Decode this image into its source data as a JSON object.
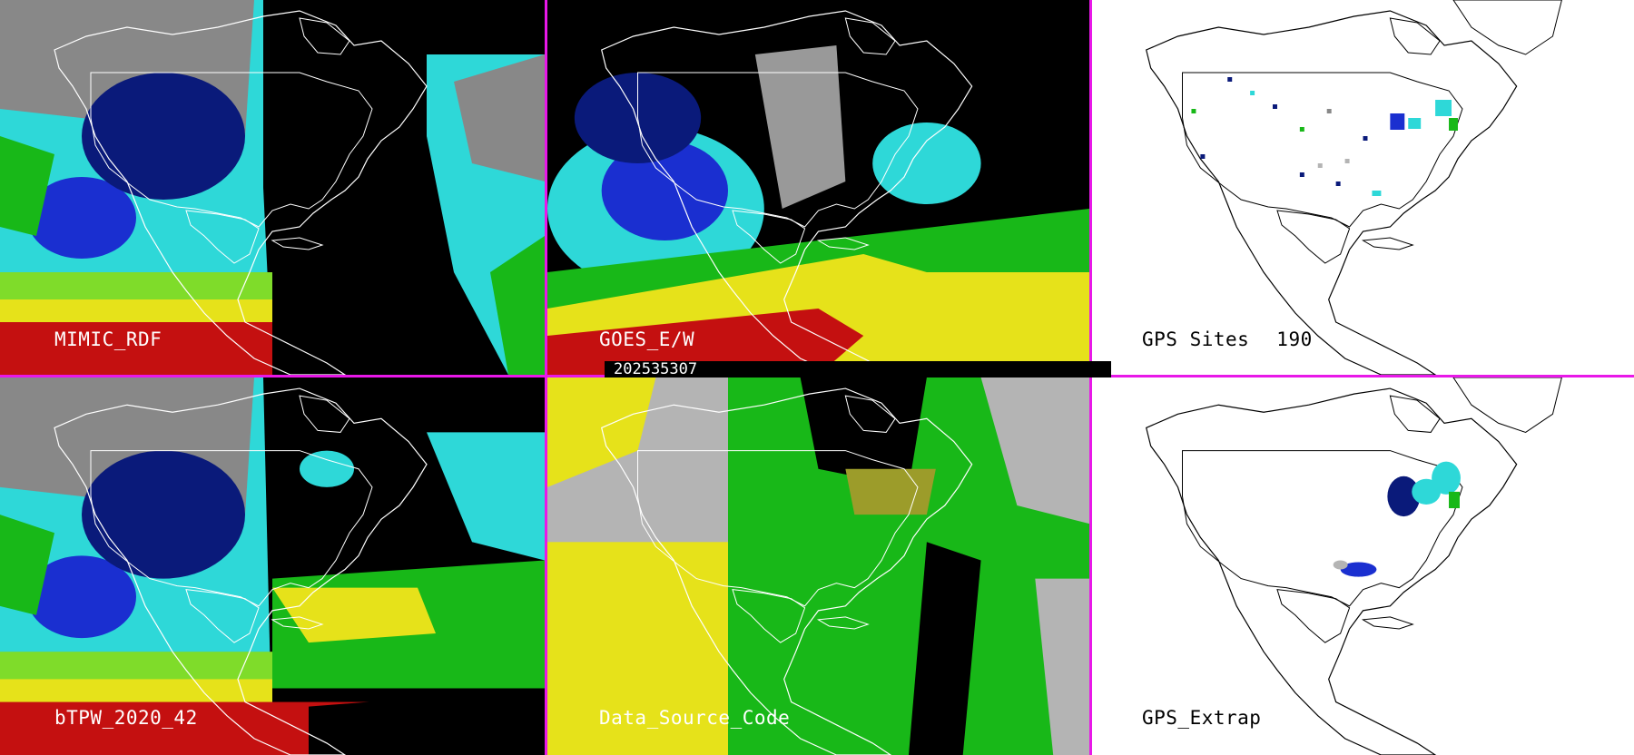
{
  "panels": {
    "mimic": {
      "label": "MIMIC_RDF"
    },
    "goes": {
      "label": "GOES_E/W"
    },
    "gps_sites": {
      "label": "GPS Sites",
      "count": "190"
    },
    "btpw": {
      "label": "bTPW_2020_42"
    },
    "source": {
      "label": "Data_Source_Code"
    },
    "gps_extrap": {
      "label": "GPS_Extrap"
    }
  },
  "timestamp": "202535307",
  "colors": {
    "divider": "#e818e8",
    "navy": "#0a1a7a",
    "blue": "#1a2fd0",
    "cyan": "#2ed8d8",
    "green": "#18b818",
    "lime": "#7fdc2a",
    "yellow": "#e6e21a",
    "red": "#c41010",
    "gray": "#b4b4b4"
  }
}
